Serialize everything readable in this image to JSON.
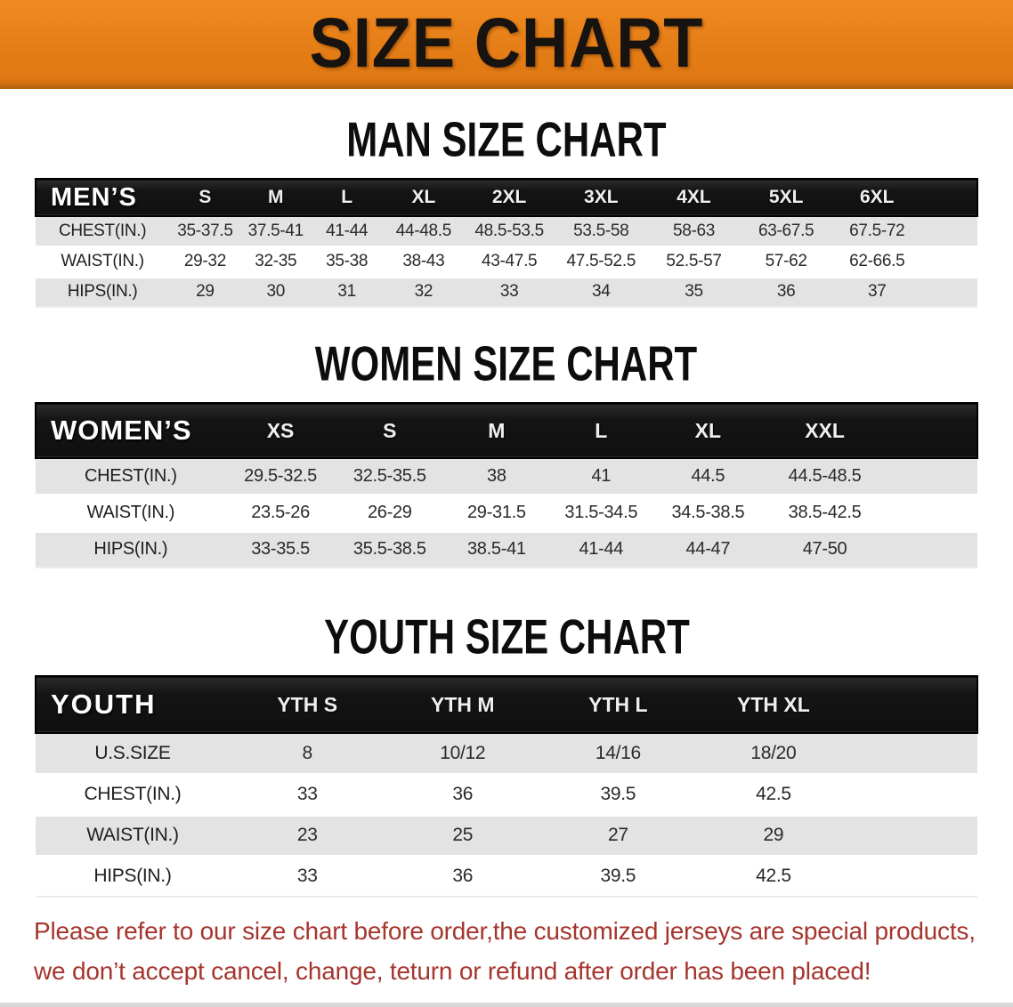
{
  "banner": {
    "title": "SIZE CHART"
  },
  "sections": [
    {
      "title": "MAN SIZE CHART",
      "header_label": "MEN’S",
      "columns": [
        "S",
        "M",
        "L",
        "XL",
        "2XL",
        "3XL",
        "4XL",
        "5XL",
        "6XL"
      ],
      "rows": [
        {
          "label": "CHEST(IN.)",
          "values": [
            "35-37.5",
            "37.5-41",
            "41-44",
            "44-48.5",
            "48.5-53.5",
            "53.5-58",
            "58-63",
            "63-67.5",
            "67.5-72"
          ]
        },
        {
          "label": "WAIST(IN.)",
          "values": [
            "29-32",
            "32-35",
            "35-38",
            "38-43",
            "43-47.5",
            "47.5-52.5",
            "52.5-57",
            "57-62",
            "62-66.5"
          ]
        },
        {
          "label": "HIPS(IN.)",
          "values": [
            "29",
            "30",
            "31",
            "32",
            "33",
            "34",
            "35",
            "36",
            "37"
          ]
        }
      ]
    },
    {
      "title": "WOMEN SIZE CHART",
      "header_label": "WOMEN’S",
      "columns": [
        "XS",
        "S",
        "M",
        "L",
        "XL",
        "XXL"
      ],
      "rows": [
        {
          "label": "CHEST(IN.)",
          "values": [
            "29.5-32.5",
            "32.5-35.5",
            "38",
            "41",
            "44.5",
            "44.5-48.5"
          ]
        },
        {
          "label": "WAIST(IN.)",
          "values": [
            "23.5-26",
            "26-29",
            "29-31.5",
            "31.5-34.5",
            "34.5-38.5",
            "38.5-42.5"
          ]
        },
        {
          "label": "HIPS(IN.)",
          "values": [
            "33-35.5",
            "35.5-38.5",
            "38.5-41",
            "41-44",
            "44-47",
            "47-50"
          ]
        }
      ]
    },
    {
      "title": "YOUTH SIZE CHART",
      "header_label": "YOUTH",
      "columns": [
        "YTH S",
        "YTH M",
        "YTH L",
        "YTH XL"
      ],
      "rows": [
        {
          "label": "U.S.SIZE",
          "values": [
            "8",
            "10/12",
            "14/16",
            "18/20"
          ]
        },
        {
          "label": "CHEST(IN.)",
          "values": [
            "33",
            "36",
            "39.5",
            "42.5"
          ]
        },
        {
          "label": "WAIST(IN.)",
          "values": [
            "23",
            "25",
            "27",
            "29"
          ]
        },
        {
          "label": "HIPS(IN.)",
          "values": [
            "33",
            "36",
            "39.5",
            "42.5"
          ]
        }
      ]
    }
  ],
  "footer": {
    "line1": "Please refer to our size chart before order,the customized jerseys are special products,",
    "line2": "we don’t accept cancel, change, teturn or refund after order has been placed!"
  },
  "colors": {
    "banner_orange": "#e67e17",
    "banner_edge": "#b5650f",
    "header_black": "#141414",
    "row_gray": "#e3e3e3",
    "footer_red": "#a5362e"
  }
}
